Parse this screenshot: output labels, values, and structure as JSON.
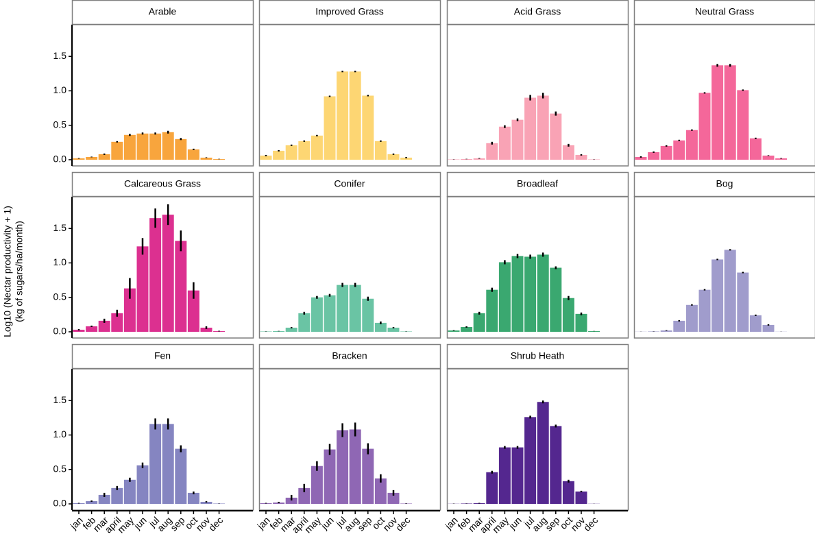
{
  "chart_data": {
    "type": "bar",
    "y_label": [
      "Log10 (Nectar productivity + 1)",
      "(kg of sugars/ha/month)"
    ],
    "categories": [
      "jan",
      "feb",
      "mar",
      "april",
      "may",
      "jun",
      "jul",
      "aug",
      "sep",
      "oct",
      "nov",
      "dec"
    ],
    "ylim": [
      -0.09,
      1.96
    ],
    "yticks": [
      {
        "value": 0,
        "label": "0.0"
      },
      {
        "value": 0.5,
        "label": "0.5"
      },
      {
        "value": 1,
        "label": "1.0"
      },
      {
        "value": 1.5,
        "label": "1.5"
      }
    ],
    "panels": [
      {
        "title": "Arable",
        "color": "#f8a53d",
        "values": [
          0.02,
          0.04,
          0.08,
          0.26,
          0.36,
          0.38,
          0.38,
          0.4,
          0.3,
          0.15,
          0.03,
          0.01
        ],
        "errors": [
          0.005,
          0.005,
          0.01,
          0.01,
          0.015,
          0.015,
          0.015,
          0.02,
          0.015,
          0.01,
          0.005,
          0.003
        ]
      },
      {
        "title": "Improved Grass",
        "color": "#fdd673",
        "values": [
          0.06,
          0.13,
          0.21,
          0.27,
          0.35,
          0.92,
          1.28,
          1.28,
          0.93,
          0.27,
          0.08,
          0.03
        ],
        "errors": [
          0.01,
          0.01,
          0.01,
          0.01,
          0.01,
          0.01,
          0.01,
          0.01,
          0.01,
          0.01,
          0.01,
          0.01
        ]
      },
      {
        "title": "Acid Grass",
        "color": "#f9a3b5",
        "values": [
          0.005,
          0.01,
          0.02,
          0.24,
          0.48,
          0.58,
          0.9,
          0.93,
          0.67,
          0.21,
          0.07,
          0.005
        ],
        "errors": [
          0.002,
          0.003,
          0.005,
          0.02,
          0.02,
          0.02,
          0.04,
          0.04,
          0.03,
          0.02,
          0.01,
          0.002
        ]
      },
      {
        "title": "Neutral Grass",
        "color": "#f4679a",
        "values": [
          0.04,
          0.11,
          0.2,
          0.28,
          0.43,
          0.97,
          1.37,
          1.37,
          1.01,
          0.31,
          0.06,
          0.02
        ],
        "errors": [
          0.01,
          0.01,
          0.01,
          0.01,
          0.01,
          0.01,
          0.02,
          0.02,
          0.01,
          0.01,
          0.005,
          0.005
        ]
      },
      {
        "title": "Calcareous Grass",
        "color": "#dc3090",
        "values": [
          0.03,
          0.08,
          0.16,
          0.27,
          0.63,
          1.24,
          1.65,
          1.7,
          1.32,
          0.6,
          0.06,
          0.01
        ],
        "errors": [
          0.01,
          0.01,
          0.03,
          0.05,
          0.15,
          0.12,
          0.14,
          0.15,
          0.15,
          0.12,
          0.02,
          0.005
        ]
      },
      {
        "title": "Conifer",
        "color": "#6ac4a4",
        "values": [
          0.005,
          0.01,
          0.06,
          0.27,
          0.5,
          0.53,
          0.68,
          0.68,
          0.48,
          0.13,
          0.06,
          0.005
        ],
        "errors": [
          0.002,
          0.003,
          0.01,
          0.02,
          0.02,
          0.02,
          0.03,
          0.03,
          0.03,
          0.02,
          0.01,
          0.002
        ]
      },
      {
        "title": "Broadleaf",
        "color": "#3aa870",
        "values": [
          0.02,
          0.07,
          0.27,
          0.61,
          1.01,
          1.1,
          1.09,
          1.12,
          0.93,
          0.49,
          0.26,
          0.01
        ],
        "errors": [
          0.005,
          0.01,
          0.02,
          0.03,
          0.03,
          0.03,
          0.03,
          0.03,
          0.02,
          0.03,
          0.02,
          0.002
        ]
      },
      {
        "title": "Bog",
        "color": "#a09ccc",
        "values": [
          0.002,
          0.005,
          0.02,
          0.16,
          0.39,
          0.61,
          1.05,
          1.19,
          0.86,
          0.24,
          0.1,
          0.002
        ],
        "errors": [
          0.001,
          0.002,
          0.005,
          0.01,
          0.01,
          0.01,
          0.01,
          0.01,
          0.01,
          0.01,
          0.01,
          0.001
        ]
      },
      {
        "title": "Fen",
        "color": "#8585c1",
        "values": [
          0.01,
          0.04,
          0.13,
          0.23,
          0.35,
          0.56,
          1.16,
          1.16,
          0.8,
          0.16,
          0.03,
          0.005
        ],
        "errors": [
          0.005,
          0.01,
          0.03,
          0.03,
          0.03,
          0.04,
          0.08,
          0.08,
          0.05,
          0.02,
          0.01,
          0.002
        ]
      },
      {
        "title": "Bracken",
        "color": "#8f67b4",
        "values": [
          0.01,
          0.02,
          0.09,
          0.23,
          0.55,
          0.79,
          1.07,
          1.08,
          0.8,
          0.37,
          0.16,
          0.005
        ],
        "errors": [
          0.005,
          0.01,
          0.04,
          0.06,
          0.07,
          0.08,
          0.1,
          0.1,
          0.08,
          0.06,
          0.04,
          0.003
        ]
      },
      {
        "title": "Shrub Heath",
        "color": "#54278f",
        "values": [
          0.002,
          0.005,
          0.01,
          0.46,
          0.82,
          0.82,
          1.26,
          1.48,
          1.13,
          0.33,
          0.18,
          0.002
        ],
        "errors": [
          0.002,
          0.002,
          0.005,
          0.02,
          0.02,
          0.02,
          0.02,
          0.02,
          0.02,
          0.02,
          0.01,
          0.001
        ]
      }
    ]
  }
}
